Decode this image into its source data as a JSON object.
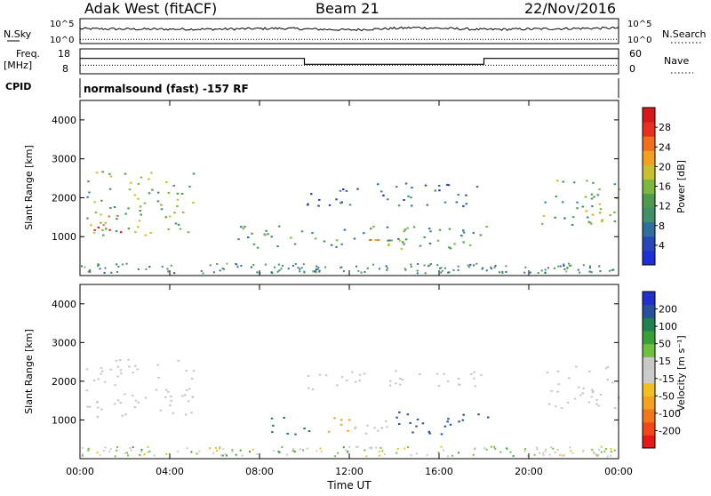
{
  "header": {
    "station": "Adak West (fitACF)",
    "beam": "Beam 21",
    "date": "22/Nov/2016"
  },
  "chart_data": [
    {
      "type": "line",
      "panel": "noise",
      "left_label": "N.Sky",
      "right_label": "N.Search",
      "left_ticks": [
        "10^5",
        "10^0"
      ],
      "right_ticks": [
        "10^5",
        "10^0"
      ],
      "x": [
        "00:00",
        "04:00",
        "08:00",
        "10:00",
        "12:00",
        "16:00",
        "18:00",
        "20:00",
        "00:00"
      ],
      "series": [
        {
          "name": "N.Sky",
          "values": [
            3.1,
            3.0,
            3.0,
            3.2,
            2.8,
            3.4,
            2.9,
            3.1,
            3.3
          ]
        },
        {
          "name": "N.Search",
          "values": [
            0.4,
            0.4,
            0.4,
            0.4,
            0.4,
            0.4,
            0.4,
            0.4,
            0.4
          ]
        }
      ]
    },
    {
      "type": "line",
      "panel": "frequency",
      "left_label": "Freq.",
      "left_unit": "[MHz]",
      "right_label": "Nave",
      "left_ticks": [
        "18",
        "8"
      ],
      "right_ticks": [
        "60",
        "0"
      ],
      "series": [
        {
          "name": "Freq.",
          "segments": [
            {
              "start_hour": 0,
              "end_hour": 10,
              "value": 14.5
            },
            {
              "start_hour": 10,
              "end_hour": 18,
              "value": 11.5
            },
            {
              "start_hour": 18,
              "end_hour": 24,
              "value": 14.5
            }
          ]
        },
        {
          "name": "Nave",
          "value": 18
        }
      ]
    },
    {
      "type": "heatmap",
      "panel": "cpid",
      "label": "CPID",
      "text": "normalsound (fast) -157 RF"
    },
    {
      "type": "heatmap",
      "panel": "power",
      "ylabel": "Slant Range [km]",
      "ylim": [
        0,
        4500
      ],
      "yticks": [
        1000,
        2000,
        3000,
        4000
      ],
      "xlim_hours": [
        0,
        24
      ],
      "colorbar": {
        "label": "Power [dB]",
        "ticks": [
          "28",
          "24",
          "20",
          "16",
          "12",
          "8",
          "4"
        ]
      },
      "scatter_regions": [
        {
          "t0": 0.2,
          "t1": 5.2,
          "r0": 1050,
          "r1": 2700,
          "level": 14
        },
        {
          "t0": 0.2,
          "t1": 2.0,
          "r0": 1100,
          "r1": 1600,
          "level": 26
        },
        {
          "t0": 7.0,
          "t1": 18.2,
          "r0": 650,
          "r1": 1300,
          "level": 10
        },
        {
          "t0": 12.5,
          "t1": 15.0,
          "r0": 700,
          "r1": 1100,
          "level": 20
        },
        {
          "t0": 10.0,
          "t1": 18.0,
          "r0": 1800,
          "r1": 2400,
          "level": 6
        },
        {
          "t0": 20.5,
          "t1": 24.0,
          "r0": 1300,
          "r1": 2500,
          "level": 12
        },
        {
          "t0": 22.5,
          "t1": 24.0,
          "r0": 1400,
          "r1": 1900,
          "level": 18
        }
      ]
    },
    {
      "type": "heatmap",
      "panel": "velocity",
      "ylabel": "Slant Range [km]",
      "ylim": [
        0,
        4500
      ],
      "yticks": [
        1000,
        2000,
        3000,
        4000
      ],
      "xlabel": "Time UT",
      "xticks": [
        "00:00",
        "04:00",
        "08:00",
        "12:00",
        "16:00",
        "20:00",
        "00:00"
      ],
      "colorbar": {
        "label": "Velocity [m s⁻¹]",
        "ticks": [
          "200",
          "100",
          "50",
          "15",
          "-15",
          "-50",
          "-100",
          "-200"
        ]
      },
      "scatter_regions": [
        {
          "t0": 0.2,
          "t1": 5.2,
          "r0": 1100,
          "r1": 2600,
          "level": 0
        },
        {
          "t0": 8.5,
          "t1": 10.5,
          "r0": 650,
          "r1": 1100,
          "level": 35
        },
        {
          "t0": 10.5,
          "t1": 12.0,
          "r0": 650,
          "r1": 1100,
          "level": -35
        },
        {
          "t0": 12.0,
          "t1": 14.0,
          "r0": 650,
          "r1": 1250,
          "level": 0
        },
        {
          "t0": 14.0,
          "t1": 18.2,
          "r0": 650,
          "r1": 1250,
          "level": 60
        },
        {
          "t0": 10.0,
          "t1": 18.0,
          "r0": 1800,
          "r1": 2300,
          "level": 0
        },
        {
          "t0": 20.5,
          "t1": 24.0,
          "r0": 1300,
          "r1": 2400,
          "level": 0
        }
      ]
    }
  ]
}
